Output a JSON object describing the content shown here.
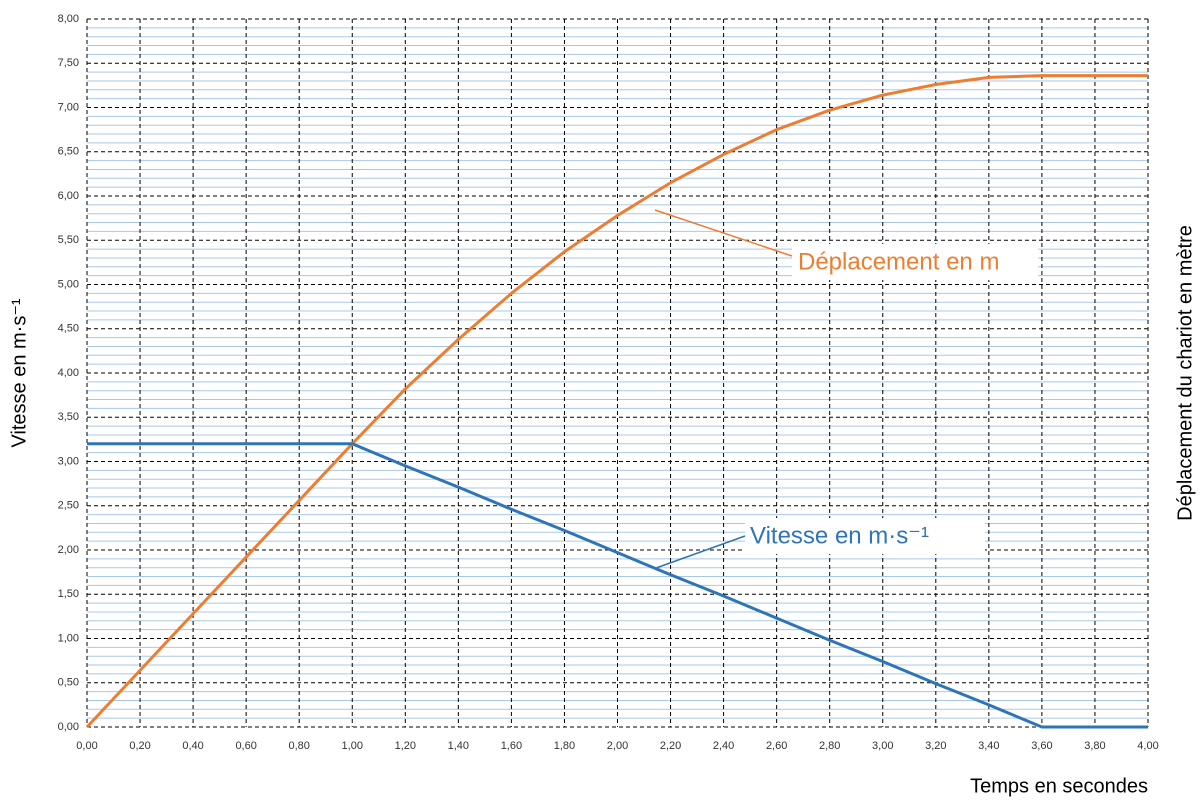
{
  "chart_data": {
    "type": "line",
    "y_label": "Vitesse en m·s⁻¹",
    "y2_label": "Déplacement du chariot en mètre",
    "x_label": "Temps en secondes",
    "x": [
      0,
      0.2,
      0.4,
      0.6,
      0.8,
      1.0,
      1.2,
      1.4,
      1.6,
      1.8,
      2.0,
      2.2,
      2.4,
      2.6,
      2.8,
      3.0,
      3.2,
      3.4,
      3.6,
      3.8,
      4.0
    ],
    "series": [
      {
        "name": "Déplacement en m",
        "color": "#ed7d31",
        "values": [
          0,
          0.64,
          1.28,
          1.92,
          2.56,
          3.2,
          3.82,
          4.38,
          4.9,
          5.37,
          5.78,
          6.15,
          6.47,
          6.75,
          6.97,
          7.14,
          7.26,
          7.34,
          7.36,
          7.36,
          7.36
        ]
      },
      {
        "name": "Vitesse en m·s⁻¹",
        "color": "#2e75b6",
        "values": [
          3.2,
          3.2,
          3.2,
          3.2,
          3.2,
          3.2,
          2.95,
          2.71,
          2.46,
          2.22,
          1.97,
          1.72,
          1.48,
          1.23,
          0.98,
          0.74,
          0.49,
          0.25,
          0,
          0,
          0
        ]
      }
    ],
    "xlim": [
      0,
      4
    ],
    "xticks": [
      {
        "value": 0,
        "label": "0,00"
      },
      {
        "value": 0.2,
        "label": "0,20"
      },
      {
        "value": 0.4,
        "label": "0,40"
      },
      {
        "value": 0.6,
        "label": "0,60"
      },
      {
        "value": 0.8,
        "label": "0,80"
      },
      {
        "value": 1.0,
        "label": "1,00"
      },
      {
        "value": 1.2,
        "label": "1,20"
      },
      {
        "value": 1.4,
        "label": "1,40"
      },
      {
        "value": 1.6,
        "label": "1,60"
      },
      {
        "value": 1.8,
        "label": "1,80"
      },
      {
        "value": 2.0,
        "label": "2,00"
      },
      {
        "value": 2.2,
        "label": "2,20"
      },
      {
        "value": 2.4,
        "label": "2,40"
      },
      {
        "value": 2.6,
        "label": "2,60"
      },
      {
        "value": 2.8,
        "label": "2,80"
      },
      {
        "value": 3.0,
        "label": "3,00"
      },
      {
        "value": 3.2,
        "label": "3,20"
      },
      {
        "value": 3.4,
        "label": "3,40"
      },
      {
        "value": 3.6,
        "label": "3,60"
      },
      {
        "value": 3.8,
        "label": "3,80"
      },
      {
        "value": 4.0,
        "label": "4,00"
      }
    ],
    "ylim": [
      0,
      8
    ],
    "yticks": [
      {
        "value": 0,
        "label": "0,00"
      },
      {
        "value": 0.5,
        "label": "0,50"
      },
      {
        "value": 1.0,
        "label": "1,00"
      },
      {
        "value": 1.5,
        "label": "1,50"
      },
      {
        "value": 2.0,
        "label": "2,00"
      },
      {
        "value": 2.5,
        "label": "2,50"
      },
      {
        "value": 3.0,
        "label": "3,00"
      },
      {
        "value": 3.5,
        "label": "3,50"
      },
      {
        "value": 4.0,
        "label": "4,00"
      },
      {
        "value": 4.5,
        "label": "4,50"
      },
      {
        "value": 5.0,
        "label": "5,00"
      },
      {
        "value": 5.5,
        "label": "5,50"
      },
      {
        "value": 6.0,
        "label": "6,00"
      },
      {
        "value": 6.5,
        "label": "6,50"
      },
      {
        "value": 7.0,
        "label": "7,00"
      },
      {
        "value": 7.5,
        "label": "7,50"
      },
      {
        "value": 8.0,
        "label": "8,00"
      }
    ],
    "grid": true
  }
}
